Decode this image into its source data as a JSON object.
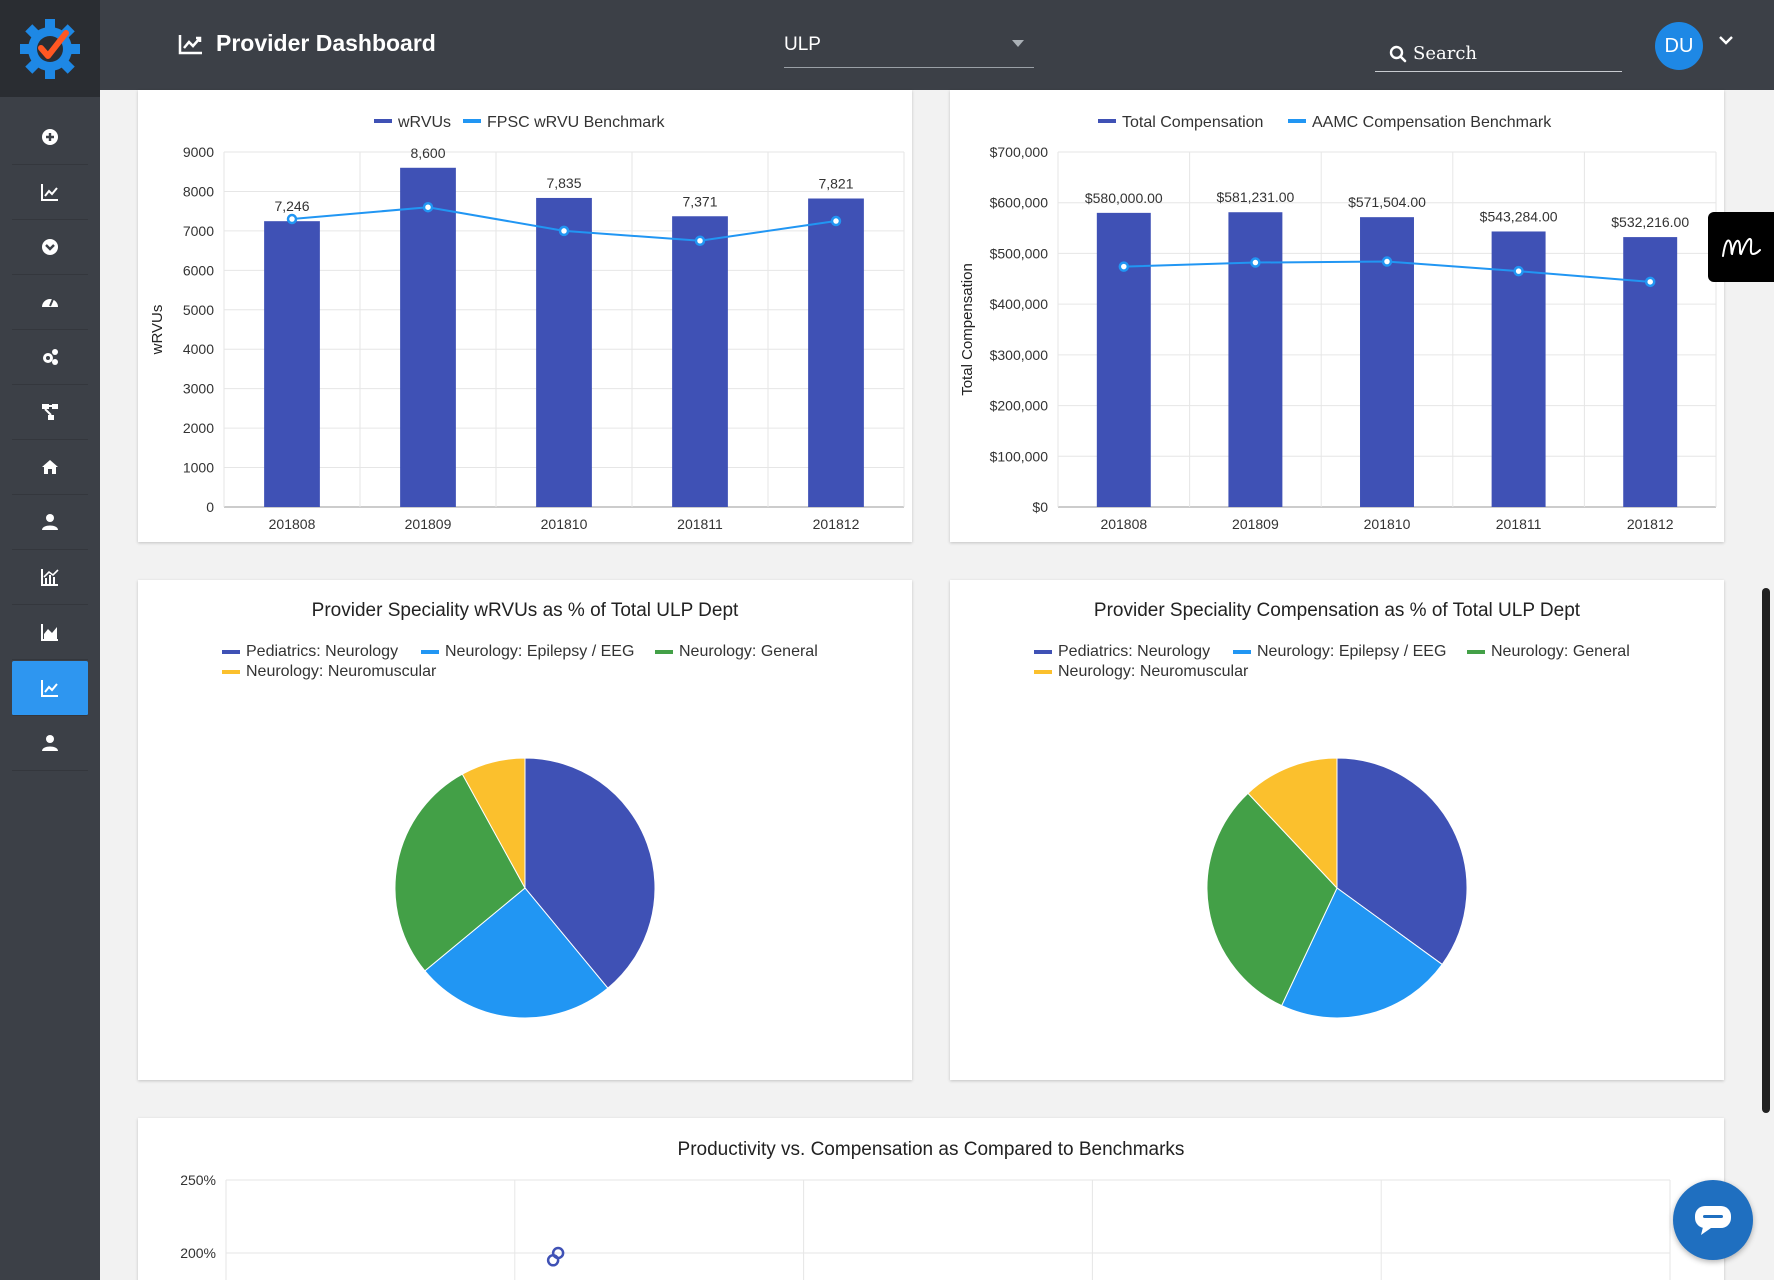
{
  "header": {
    "title": "Provider Dashboard",
    "department": "ULP",
    "search_placeholder": "Search",
    "user_initials": "DU"
  },
  "sidebar": {
    "items": [
      {
        "icon": "plus-circle-icon"
      },
      {
        "icon": "line-chart-icon"
      },
      {
        "icon": "chevron-circle-icon"
      },
      {
        "icon": "speedometer-icon"
      },
      {
        "icon": "gears-icon"
      },
      {
        "icon": "hierarchy-icon"
      },
      {
        "icon": "home-icon"
      },
      {
        "icon": "user-icon"
      },
      {
        "icon": "bar-area-chart-icon"
      },
      {
        "icon": "area-chart-icon"
      },
      {
        "icon": "line-chart-icon",
        "active": true
      },
      {
        "icon": "user-icon"
      }
    ]
  },
  "colors": {
    "primary": "#3f51b5",
    "secondary": "#2196f3",
    "green": "#43a047",
    "yellow": "#fbc02d",
    "active_nav": "#2e96f0",
    "chrome": "#3c4047"
  },
  "chart_data": [
    {
      "type": "bar",
      "title": "",
      "categories": [
        "201808",
        "201809",
        "201810",
        "201811",
        "201812"
      ],
      "series": [
        {
          "name": "wRVUs",
          "kind": "bar",
          "values": [
            7246,
            8600,
            7835,
            7371,
            7821
          ]
        },
        {
          "name": "FPSC wRVU Benchmark",
          "kind": "line",
          "values": [
            7300,
            7600,
            7000,
            6750,
            7250
          ]
        }
      ],
      "data_labels": [
        "7,246",
        "8,600",
        "7,835",
        "7,371",
        "7,821"
      ],
      "ylabel": "wRVUs",
      "ylim": [
        0,
        9000
      ],
      "yticks": [
        "0",
        "1000",
        "2000",
        "3000",
        "4000",
        "5000",
        "6000",
        "7000",
        "8000",
        "9000"
      ],
      "legend": "top",
      "grid": true
    },
    {
      "type": "bar",
      "title": "",
      "categories": [
        "201808",
        "201809",
        "201810",
        "201811",
        "201812"
      ],
      "series": [
        {
          "name": "Total Compensation",
          "kind": "bar",
          "values": [
            580000,
            581231,
            571504,
            543284,
            532216
          ]
        },
        {
          "name": "AAMC Compensation Benchmark",
          "kind": "line",
          "values": [
            474000,
            482000,
            484000,
            465000,
            444000
          ]
        }
      ],
      "data_labels": [
        "$580,000.00",
        "$581,231.00",
        "$571,504.00",
        "$543,284.00",
        "$532,216.00"
      ],
      "ylabel": "Total Compensation",
      "ylim": [
        0,
        700000
      ],
      "yticks": [
        "$0",
        "$100,000",
        "$200,000",
        "$300,000",
        "$400,000",
        "$500,000",
        "$600,000",
        "$700,000"
      ],
      "legend": "top",
      "grid": true
    },
    {
      "type": "pie",
      "title": "Provider Speciality wRVUs as % of Total ULP Dept",
      "labels": [
        "Pediatrics: Neurology",
        "Neurology: Epilepsy / EEG",
        "Neurology: General",
        "Neurology: Neuromuscular"
      ],
      "values": [
        39,
        25,
        28,
        8
      ],
      "legend": "top"
    },
    {
      "type": "pie",
      "title": "Provider Speciality Compensation as % of Total ULP Dept",
      "labels": [
        "Pediatrics: Neurology",
        "Neurology: Epilepsy / EEG",
        "Neurology: General",
        "Neurology: Neuromuscular"
      ],
      "values": [
        35,
        22,
        31,
        12
      ],
      "legend": "top"
    },
    {
      "type": "scatter",
      "title": "Productivity vs. Compensation as Compared to Benchmarks",
      "yticks_visible": [
        "250%",
        "200%"
      ],
      "points_visible": [
        {
          "x_col": 1,
          "y": 200
        },
        {
          "x_col": 1,
          "y": 195
        }
      ]
    }
  ]
}
